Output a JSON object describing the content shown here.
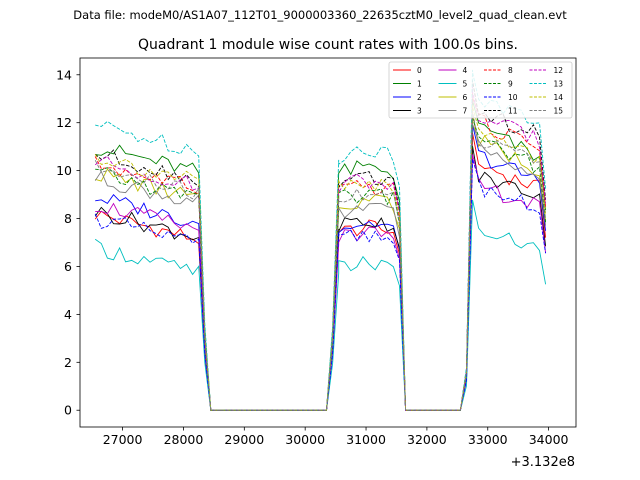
{
  "chart_data": {
    "type": "line",
    "suptitle": "Data file: modeM0/AS1A07_112T01_9000003360_22635cztM0_level2_quad_clean.evt",
    "title": "Quadrant 1 module wise count rates with 100.0s bins.",
    "xlabel": "",
    "ylabel": "",
    "x_offset_label": "+3.132e8",
    "xlim": [
      26300,
      34450
    ],
    "ylim": [
      -0.7,
      14.7
    ],
    "xticks": [
      27000,
      28000,
      29000,
      30000,
      31000,
      32000,
      33000,
      34000
    ],
    "yticks": [
      0,
      2,
      4,
      6,
      8,
      10,
      12,
      14
    ],
    "legend_position": "top-right",
    "legend_ncol": 4,
    "segments": [
      {
        "start": 26550,
        "n": 20
      },
      {
        "start": 28450,
        "n": 3
      },
      {
        "start": 28550,
        "n": 19
      },
      {
        "start": 30450,
        "n": 2
      },
      {
        "start": 30550,
        "n": 11
      },
      {
        "start": 31650,
        "n": 10
      },
      {
        "start": 32650,
        "n": 2
      },
      {
        "start": 32750,
        "n": 13
      }
    ],
    "bin_width": 100,
    "series": [
      {
        "name": "0",
        "color": "#ff0000",
        "dash": false,
        "plateaus": [
          7.6,
          7.4,
          10.0
        ],
        "drift": -0.9
      },
      {
        "name": "1",
        "color": "#008000",
        "dash": false,
        "plateaus": [
          10.4,
          9.9,
          11.6
        ],
        "drift": -1.2
      },
      {
        "name": "2",
        "color": "#0000ff",
        "dash": false,
        "plateaus": [
          8.3,
          7.6,
          10.4
        ],
        "drift": -1.0
      },
      {
        "name": "3",
        "color": "#000000",
        "dash": false,
        "plateaus": [
          7.7,
          7.7,
          9.5
        ],
        "drift": -0.7
      },
      {
        "name": "4",
        "color": "#bf00bf",
        "dash": false,
        "plateaus": [
          8.0,
          7.2,
          9.1
        ],
        "drift": -0.8
      },
      {
        "name": "5",
        "color": "#00bfbf",
        "dash": false,
        "plateaus": [
          6.2,
          5.9,
          7.3
        ],
        "drift": -0.8
      },
      {
        "name": "6",
        "color": "#bfbf00",
        "dash": false,
        "plateaus": [
          9.3,
          8.6,
          11.0
        ],
        "drift": -1.1
      },
      {
        "name": "7",
        "color": "#808080",
        "dash": false,
        "plateaus": [
          9.1,
          8.2,
          10.7
        ],
        "drift": -0.9
      },
      {
        "name": "8",
        "color": "#ff0000",
        "dash": true,
        "plateaus": [
          9.7,
          9.1,
          11.8
        ],
        "drift": -1.0
      },
      {
        "name": "9",
        "color": "#008000",
        "dash": true,
        "plateaus": [
          9.3,
          8.8,
          10.9
        ],
        "drift": -0.9
      },
      {
        "name": "10",
        "color": "#0000ff",
        "dash": true,
        "plateaus": [
          7.4,
          7.1,
          9.1
        ],
        "drift": -0.9
      },
      {
        "name": "11",
        "color": "#000000",
        "dash": true,
        "plateaus": [
          10.1,
          9.5,
          12.2
        ],
        "drift": -0.9
      },
      {
        "name": "12",
        "color": "#bf00bf",
        "dash": true,
        "plateaus": [
          9.8,
          9.4,
          12.0
        ],
        "drift": -0.9
      },
      {
        "name": "13",
        "color": "#00bfbf",
        "dash": true,
        "plateaus": [
          11.3,
          10.6,
          12.8
        ],
        "drift": -1.0
      },
      {
        "name": "14",
        "color": "#bfbf00",
        "dash": true,
        "plateaus": [
          10.0,
          9.3,
          11.4
        ],
        "drift": -1.1
      },
      {
        "name": "15",
        "color": "#808080",
        "dash": true,
        "plateaus": [
          9.5,
          8.9,
          11.1
        ],
        "drift": -0.9
      }
    ]
  }
}
